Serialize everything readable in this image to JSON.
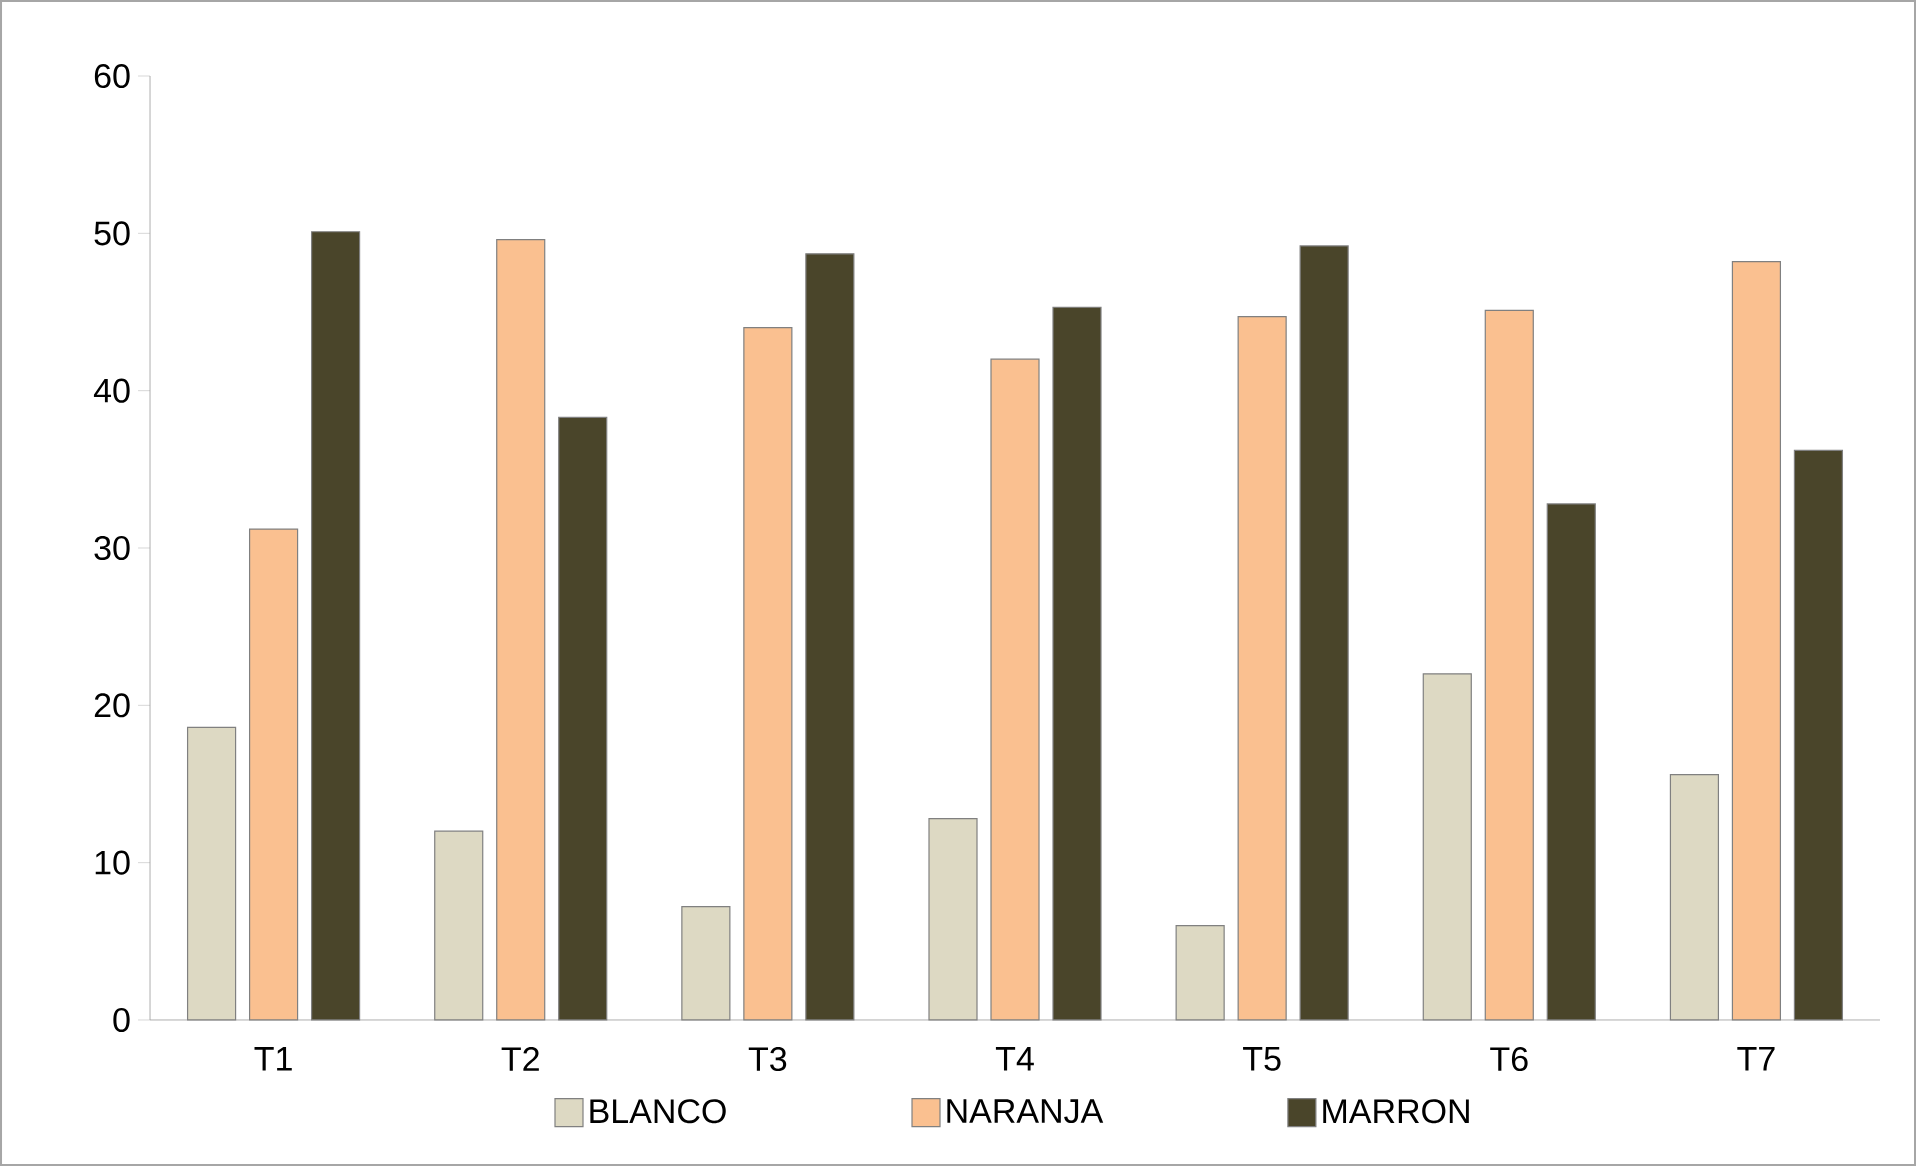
{
  "chart_data": {
    "type": "bar",
    "categories": [
      "T1",
      "T2",
      "T3",
      "T4",
      "T5",
      "T6",
      "T7"
    ],
    "series": [
      {
        "name": "BLANCO",
        "color": "#ddd9c3",
        "values": [
          18.6,
          12.0,
          7.2,
          12.8,
          6.0,
          22.0,
          15.6
        ]
      },
      {
        "name": "NARANJA",
        "color": "#fac090",
        "values": [
          31.2,
          49.6,
          44.0,
          42.0,
          44.7,
          45.1,
          48.2
        ]
      },
      {
        "name": "MARRON",
        "color": "#4a452a",
        "values": [
          50.1,
          38.3,
          48.7,
          45.3,
          49.2,
          32.8,
          36.2
        ]
      }
    ],
    "ylim": [
      0,
      60
    ],
    "yticks": [
      0,
      10,
      20,
      30,
      40,
      50,
      60
    ],
    "grid": false,
    "legend": "bottom"
  }
}
